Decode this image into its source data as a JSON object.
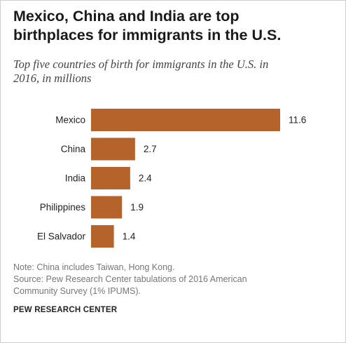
{
  "header": {
    "title_line1": "Mexico, China and India are top",
    "title_line2": "birthplaces for immigrants in the U.S.",
    "subtitle_line1": "Top five countries of birth for immigrants in the U.S. in",
    "subtitle_line2": "2016, in millions"
  },
  "chart_data": {
    "type": "bar",
    "orientation": "horizontal",
    "categories": [
      "Mexico",
      "China",
      "India",
      "Philippines",
      "El Salvador"
    ],
    "values": [
      11.6,
      2.7,
      2.4,
      1.9,
      1.4
    ],
    "value_labels": [
      "11.6",
      "2.7",
      "2.4",
      "1.9",
      "1.4"
    ],
    "bar_color": "#b5622b",
    "grid": false,
    "axis_visible": false
  },
  "footer": {
    "note": "Note: China includes Taiwan, Hong Kong.",
    "source_line1": "Source: Pew Research Center tabulations of 2016 American",
    "source_line2": "Community Survey (1% IPUMS).",
    "brand": "PEW RESEARCH CENTER"
  }
}
